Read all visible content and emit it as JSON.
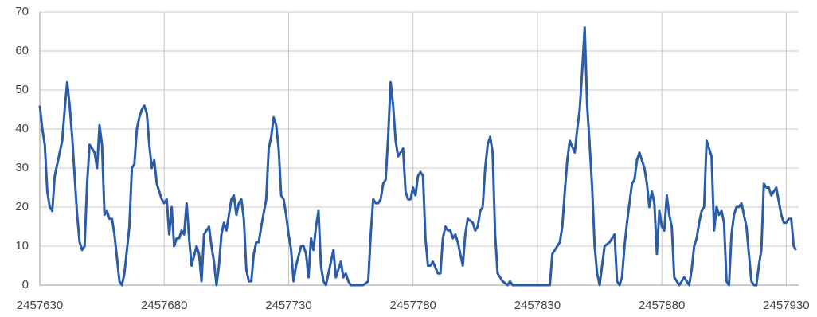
{
  "chart_data": {
    "type": "line",
    "x": [
      2457630,
      2457631,
      2457632,
      2457633,
      2457634,
      2457635,
      2457636,
      2457638,
      2457639,
      2457640,
      2457641,
      2457642,
      2457643,
      2457644,
      2457645,
      2457646,
      2457647,
      2457648,
      2457649,
      2457650,
      2457652,
      2457653,
      2457654,
      2457655,
      2457656,
      2457657,
      2457658,
      2457659,
      2457660,
      2457661,
      2457662,
      2457663,
      2457664,
      2457666,
      2457667,
      2457668,
      2457669,
      2457670,
      2457671,
      2457672,
      2457673,
      2457674,
      2457675,
      2457676,
      2457677,
      2457679,
      2457680,
      2457681,
      2457682,
      2457683,
      2457684,
      2457685,
      2457686,
      2457687,
      2457688,
      2457689,
      2457690,
      2457691,
      2457693,
      2457694,
      2457695,
      2457696,
      2457697,
      2457698,
      2457699,
      2457700,
      2457701,
      2457702,
      2457703,
      2457704,
      2457705,
      2457707,
      2457708,
      2457709,
      2457710,
      2457711,
      2457712,
      2457713,
      2457714,
      2457715,
      2457716,
      2457717,
      2457718,
      2457719,
      2457721,
      2457722,
      2457723,
      2457724,
      2457725,
      2457726,
      2457727,
      2457728,
      2457729,
      2457730,
      2457731,
      2457732,
      2457733,
      2457735,
      2457736,
      2457737,
      2457738,
      2457739,
      2457740,
      2457741,
      2457742,
      2457743,
      2457744,
      2457745,
      2457746,
      2457748,
      2457749,
      2457750,
      2457751,
      2457752,
      2457753,
      2457754,
      2457755,
      2457756,
      2457757,
      2457758,
      2457759,
      2457760,
      2457762,
      2457763,
      2457764,
      2457765,
      2457766,
      2457767,
      2457768,
      2457769,
      2457770,
      2457771,
      2457772,
      2457773,
      2457774,
      2457776,
      2457777,
      2457778,
      2457779,
      2457780,
      2457781,
      2457782,
      2457783,
      2457784,
      2457785,
      2457786,
      2457787,
      2457788,
      2457790,
      2457791,
      2457792,
      2457793,
      2457794,
      2457795,
      2457796,
      2457797,
      2457798,
      2457799,
      2457800,
      2457801,
      2457802,
      2457804,
      2457805,
      2457806,
      2457807,
      2457808,
      2457809,
      2457810,
      2457811,
      2457812,
      2457813,
      2457814,
      2457815,
      2457816,
      2457818,
      2457819,
      2457820,
      2457821,
      2457822,
      2457823,
      2457824,
      2457825,
      2457826,
      2457827,
      2457828,
      2457829,
      2457831,
      2457832,
      2457833,
      2457834,
      2457835,
      2457836,
      2457837,
      2457838,
      2457839,
      2457840,
      2457841,
      2457842,
      2457843,
      2457845,
      2457846,
      2457847,
      2457848,
      2457849,
      2457850,
      2457851,
      2457852,
      2457853,
      2457854,
      2457855,
      2457856,
      2457857,
      2457859,
      2457860,
      2457861,
      2457862,
      2457863,
      2457864,
      2457865,
      2457866,
      2457867,
      2457868,
      2457869,
      2457870,
      2457871,
      2457873,
      2457874,
      2457875,
      2457876,
      2457877,
      2457878,
      2457879,
      2457880,
      2457881,
      2457882,
      2457883,
      2457884,
      2457885,
      2457887,
      2457888,
      2457889,
      2457890,
      2457891,
      2457892,
      2457893,
      2457894,
      2457895,
      2457896,
      2457897,
      2457898,
      2457900,
      2457901,
      2457902,
      2457903,
      2457904,
      2457905,
      2457906,
      2457907,
      2457908,
      2457909,
      2457910,
      2457911,
      2457912,
      2457914,
      2457915,
      2457916,
      2457917,
      2457918,
      2457919,
      2457920,
      2457921,
      2457922,
      2457923,
      2457924,
      2457925,
      2457926,
      2457928,
      2457929,
      2457930,
      2457931,
      2457932,
      2457933,
      2457934
    ],
    "series": [
      {
        "color": "#2b5ca8",
        "values": [
          46,
          40,
          36,
          24,
          20,
          19,
          28,
          34,
          37,
          45,
          52,
          46,
          38,
          28,
          18,
          11,
          9,
          10,
          26,
          36,
          34,
          30,
          41,
          36,
          18,
          19,
          17,
          17,
          13,
          7,
          1,
          0,
          3,
          15,
          30,
          31,
          40,
          43,
          45,
          46,
          44,
          36,
          30,
          32,
          26,
          22,
          21,
          22,
          13,
          20,
          10,
          12,
          12,
          14,
          13,
          21,
          12,
          5,
          10,
          8,
          1,
          13,
          14,
          15,
          10,
          6,
          0,
          5,
          13,
          16,
          14,
          22,
          23,
          18,
          21,
          22,
          17,
          4,
          1,
          1,
          8,
          11,
          11,
          15,
          22,
          35,
          38,
          43,
          41,
          35,
          23,
          22,
          18,
          13,
          9,
          1,
          5,
          10,
          10,
          8,
          2,
          12,
          9,
          15,
          19,
          5,
          1,
          0,
          3,
          9,
          2,
          4,
          6,
          2,
          3,
          1,
          0,
          0,
          0,
          0,
          0,
          0,
          1,
          13,
          22,
          21,
          21,
          22,
          26,
          27,
          38,
          52,
          46,
          37,
          33,
          35,
          24,
          22,
          22,
          25,
          23,
          28,
          29,
          28,
          12,
          5,
          5,
          6,
          3,
          3,
          12,
          15,
          14,
          14,
          12,
          13,
          11,
          8,
          5,
          13,
          17,
          16,
          14,
          15,
          19,
          20,
          30,
          36,
          38,
          34,
          13,
          3,
          2,
          1,
          0,
          1,
          0,
          0,
          0,
          0,
          0,
          0,
          0,
          0,
          0,
          0,
          0,
          0,
          0,
          0,
          0,
          8,
          9,
          10,
          11,
          15,
          24,
          32,
          37,
          34,
          40,
          45,
          55,
          66,
          46,
          36,
          25,
          10,
          3,
          0,
          5,
          10,
          11,
          12,
          13,
          1,
          0,
          2,
          10,
          16,
          21,
          26,
          27,
          32,
          34,
          30,
          26,
          20,
          24,
          21,
          8,
          19,
          15,
          14,
          23,
          18,
          15,
          2,
          0,
          1,
          2,
          1,
          0,
          4,
          10,
          12,
          16,
          19,
          20,
          37,
          33,
          14,
          20,
          18,
          19,
          16,
          1,
          0,
          13,
          18,
          20,
          20,
          21,
          15,
          8,
          1,
          0,
          0,
          5,
          9,
          26,
          25,
          25,
          23,
          24,
          25,
          18,
          16,
          16,
          17,
          17,
          10,
          9
        ]
      }
    ],
    "xlim": [
      2457630,
      2457935
    ],
    "xticks": [
      2457630,
      2457680,
      2457730,
      2457780,
      2457830,
      2457880,
      2457930
    ],
    "ylim": [
      0,
      70
    ],
    "yticks": [
      0,
      10,
      20,
      30,
      40,
      50,
      60,
      70
    ],
    "grid": true
  }
}
